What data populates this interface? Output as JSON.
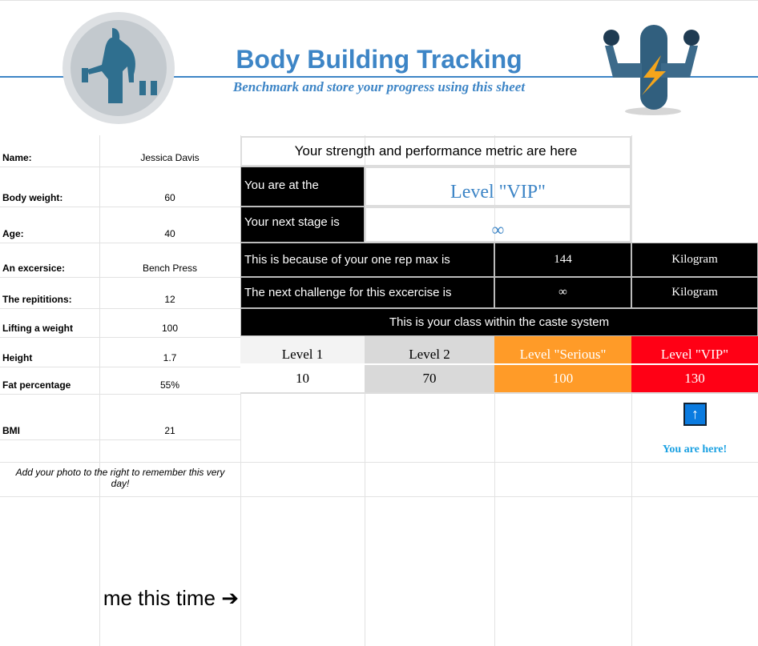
{
  "header": {
    "title": "Body Building Tracking",
    "subtitle": "Benchmark and store your progress using this sheet",
    "accent": "#3d85c6"
  },
  "profile": [
    {
      "label": "Name:",
      "value": "Jessica Davis"
    },
    {
      "label": "Body weight:",
      "value": "60"
    },
    {
      "label": "Age:",
      "value": "40"
    },
    {
      "label": "An excersice:",
      "value": "Bench Press"
    },
    {
      "label": "The repititions:",
      "value": "12"
    },
    {
      "label": "Lifting a weight",
      "value": "100"
    },
    {
      "label": "Height",
      "value": "1.7"
    },
    {
      "label": "Fat percentage",
      "value": "55%"
    },
    {
      "label": "BMI",
      "value": "21"
    }
  ],
  "photo_note": "Add your photo to the right to remember this very day!",
  "photo_caption": "me this time ➔",
  "metrics": {
    "heading": "Your strength and performance metric are here",
    "level_label": "You are at the",
    "level_value": "Level \"VIP\"",
    "next_label": "Your next stage is",
    "next_value": "∞",
    "orm_label": "This is because of your one rep max is",
    "orm_value": "144",
    "orm_unit": "Kilogram",
    "challenge_label": "The next challenge for this excercise is",
    "challenge_value": "∞",
    "challenge_unit": "Kilogram",
    "caste_heading": "This is your class within the caste system",
    "levels": [
      {
        "name": "Level 1",
        "threshold": "10",
        "color": "#f3f3f3"
      },
      {
        "name": "Level 2",
        "threshold": "70",
        "color": "#d9d9d9"
      },
      {
        "name": "Level \"Serious\"",
        "threshold": "100",
        "color": "#ff9b28"
      },
      {
        "name": "Level \"VIP\"",
        "threshold": "130",
        "color": "#ff0015"
      }
    ],
    "arrow_icon": "up-arrow-icon",
    "you_are_here": "You are here!"
  }
}
